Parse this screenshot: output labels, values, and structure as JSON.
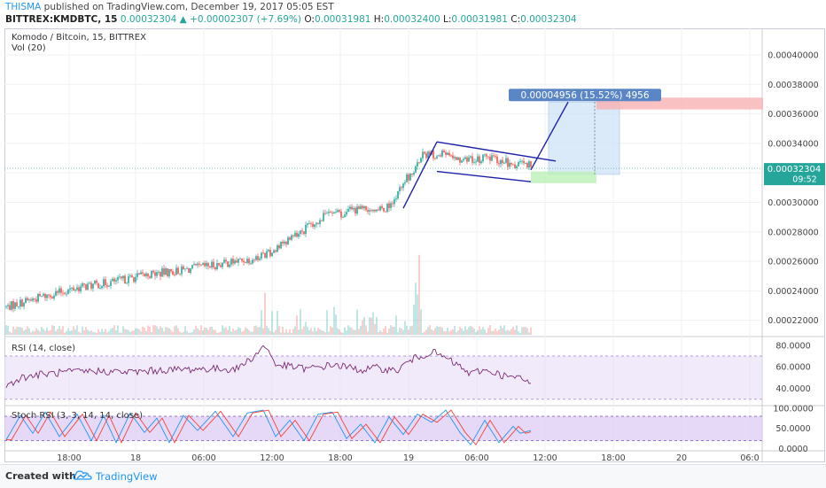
{
  "header": {
    "line1": {
      "user": "THISMA",
      "text": "published on TradingView.com, December 19, 2017 05:05 EST"
    },
    "line2": {
      "symbol": "BITTREX:KMDBTC, 15",
      "price": "0.00032304",
      "arrow": "▲",
      "change": "+0.00002307 (+7.69%)",
      "o_label": "O:",
      "o": "0.00031981",
      "h_label": "H:",
      "h": "0.00032400",
      "l_label": "L:",
      "l": "0.00031981",
      "c_label": "C:",
      "c": "0.00032304"
    }
  },
  "footer": {
    "created": "Created with",
    "brand": "TradingView"
  },
  "colors": {
    "up": "#26a69a",
    "down": "#ef5350",
    "drawing": "#1e22aa",
    "rsi_band": "#e8dcf8",
    "stoch_band": "#dcc8f4",
    "price_label": "#26a69a",
    "measure_label": "#5b86c5"
  },
  "chart_data": [
    {
      "type": "candlestick",
      "title": "Komodo / Bitcoin, 15, BITTREX",
      "indicator": "Vol (20)",
      "ylim": [
        0.000209,
        0.000418
      ],
      "y_ticks": [
        "0.00040000",
        "0.00038000",
        "0.00036000",
        "0.00034000",
        "0.00032000",
        "0.00030000",
        "0.00028000",
        "0.00026000",
        "0.00024000",
        "0.00022000"
      ],
      "y_tick_values": [
        0.0004,
        0.00038,
        0.00036,
        0.00034,
        0.00032,
        0.0003,
        0.00028,
        0.00026,
        0.00024,
        0.00022
      ],
      "x_ticks": [
        "18:00",
        "18",
        "06:00",
        "12:00",
        "18:00",
        "19",
        "06:00",
        "12:00",
        "18:00",
        "20",
        "06:0"
      ],
      "last_price": "0.00032304",
      "countdown": "09:52",
      "anchors": [
        [
          0,
          0.000229
        ],
        [
          20,
          0.000236
        ],
        [
          40,
          0.000242
        ],
        [
          60,
          0.000246
        ],
        [
          80,
          0.000251
        ],
        [
          100,
          0.000254
        ],
        [
          120,
          0.000258
        ],
        [
          140,
          0.000262
        ],
        [
          150,
          0.000267
        ],
        [
          160,
          0.000276
        ],
        [
          170,
          0.000283
        ],
        [
          180,
          0.000291
        ],
        [
          190,
          0.000293
        ],
        [
          200,
          0.000296
        ],
        [
          210,
          0.000294
        ],
        [
          218,
          0.000299
        ],
        [
          226,
          0.000316
        ],
        [
          236,
          0.000333
        ],
        [
          248,
          0.000332
        ],
        [
          260,
          0.000329
        ],
        [
          275,
          0.00033
        ],
        [
          286,
          0.000326
        ],
        [
          296,
          0.000325
        ]
      ],
      "volume_spikes": [
        [
          146,
          0.5
        ],
        [
          230,
          0.36
        ],
        [
          231,
          0.62
        ],
        [
          232,
          0.48
        ],
        [
          233,
          0.95
        ],
        [
          234,
          0.3
        ],
        [
          185,
          0.33
        ],
        [
          150,
          0.28
        ],
        [
          186,
          0.24
        ]
      ],
      "annotations": {
        "measure_label": "0.00004956 (15.52%) 4956",
        "uptrend_line": [
          [
            224,
            0.000296
          ],
          [
            243,
            0.000341
          ]
        ],
        "flag_upper": [
          [
            243,
            0.000341
          ],
          [
            310,
            0.000328
          ]
        ],
        "flag_lower": [
          [
            243,
            0.000321
          ],
          [
            296,
            0.000314
          ]
        ],
        "breakout": [
          [
            296,
            0.000322
          ],
          [
            317,
            0.000368
          ]
        ],
        "target_box": {
          "x0": 306,
          "x1": 346,
          "y0": 0.000319,
          "y1": 0.000368
        },
        "entry_box": {
          "x0": 296,
          "x1": 333,
          "y0": 0.000313,
          "y1": 0.000321
        },
        "resistance_box": {
          "x0": 333,
          "x1": 427,
          "y0": 0.000363,
          "y1": 0.000371
        }
      }
    },
    {
      "type": "line",
      "title": "RSI (14, close)",
      "ylim": [
        24,
        88
      ],
      "y_ticks": [
        "80.0000",
        "60.0000",
        "40.0000"
      ],
      "y_tick_values": [
        80,
        60,
        40
      ],
      "band": [
        30,
        70
      ],
      "anchors": [
        [
          0,
          42
        ],
        [
          8,
          50
        ],
        [
          20,
          53
        ],
        [
          35,
          55
        ],
        [
          50,
          56
        ],
        [
          70,
          55
        ],
        [
          90,
          57
        ],
        [
          110,
          58
        ],
        [
          130,
          58
        ],
        [
          140,
          70
        ],
        [
          146,
          80
        ],
        [
          152,
          62
        ],
        [
          170,
          58
        ],
        [
          185,
          62
        ],
        [
          200,
          57
        ],
        [
          210,
          59
        ],
        [
          220,
          56
        ],
        [
          228,
          66
        ],
        [
          234,
          70
        ],
        [
          240,
          74
        ],
        [
          248,
          68
        ],
        [
          256,
          60
        ],
        [
          262,
          53
        ],
        [
          268,
          57
        ],
        [
          275,
          55
        ],
        [
          282,
          51
        ],
        [
          290,
          49
        ],
        [
          296,
          45
        ]
      ]
    },
    {
      "type": "line",
      "title": "Stoch RSI (3, 3, 14, 14, close)",
      "ylim": [
        -5,
        106
      ],
      "y_ticks": [
        "100.0000",
        "50.0000",
        "0.0000"
      ],
      "y_tick_values": [
        100,
        50,
        0
      ],
      "band": [
        20,
        80
      ],
      "series_colors": [
        "#2196f3",
        "#f44336"
      ],
      "turning_points": [
        [
          0,
          22
        ],
        [
          8,
          82
        ],
        [
          15,
          38
        ],
        [
          22,
          90
        ],
        [
          30,
          30
        ],
        [
          40,
          85
        ],
        [
          48,
          20
        ],
        [
          55,
          82
        ],
        [
          62,
          15
        ],
        [
          70,
          88
        ],
        [
          78,
          40
        ],
        [
          85,
          75
        ],
        [
          92,
          15
        ],
        [
          100,
          82
        ],
        [
          108,
          45
        ],
        [
          118,
          92
        ],
        [
          128,
          30
        ],
        [
          136,
          88
        ],
        [
          145,
          95
        ],
        [
          152,
          30
        ],
        [
          160,
          70
        ],
        [
          168,
          20
        ],
        [
          176,
          85
        ],
        [
          184,
          90
        ],
        [
          192,
          25
        ],
        [
          200,
          60
        ],
        [
          208,
          15
        ],
        [
          216,
          78
        ],
        [
          224,
          35
        ],
        [
          232,
          85
        ],
        [
          240,
          65
        ],
        [
          248,
          95
        ],
        [
          256,
          40
        ],
        [
          262,
          10
        ],
        [
          270,
          70
        ],
        [
          278,
          15
        ],
        [
          286,
          55
        ],
        [
          290,
          38
        ],
        [
          296,
          45
        ]
      ]
    }
  ]
}
